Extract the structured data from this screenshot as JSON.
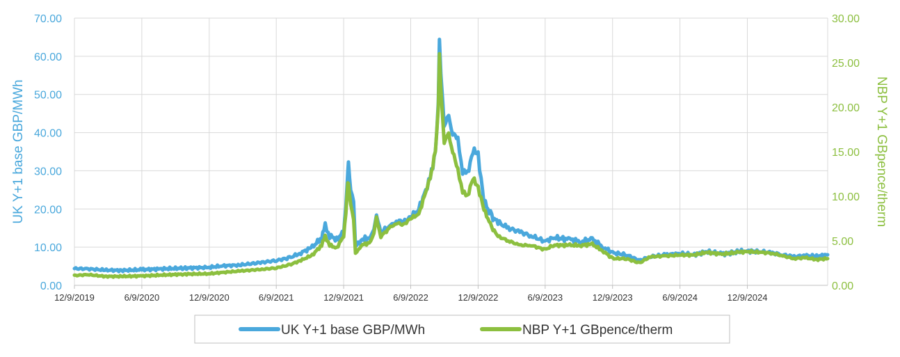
{
  "chart_data": {
    "type": "line",
    "title": "",
    "xlabel": "",
    "x_ticks": [
      "12/9/2019",
      "6/9/2020",
      "12/9/2020",
      "6/9/2021",
      "12/9/2021",
      "6/9/2022",
      "12/9/2022",
      "6/9/2023",
      "12/9/2023",
      "6/9/2024",
      "12/9/2024"
    ],
    "x_range": [
      "2019-12-09",
      "2025-07-15"
    ],
    "y_left": {
      "label": "UK Y+1 base GBP/MWh",
      "ylim": [
        0,
        70
      ],
      "ticks": [
        "0.00",
        "10.00",
        "20.00",
        "30.00",
        "40.00",
        "50.00",
        "60.00",
        "70.00"
      ]
    },
    "y_right": {
      "label": "NBP Y+1 GBpence/therm",
      "ylim": [
        0,
        30
      ],
      "ticks": [
        "0.00",
        "5.00",
        "10.00",
        "15.00",
        "20.00",
        "25.00",
        "30.00"
      ]
    },
    "grid": true,
    "legend_position": "bottom",
    "series": [
      {
        "name": "UK Y+1 base GBP/MWh",
        "axis": "left",
        "color": "#4aa8dc",
        "points": [
          [
            "2019-12-09",
            4.4
          ],
          [
            "2020-01-15",
            4.3
          ],
          [
            "2020-03-01",
            4.0
          ],
          [
            "2020-04-15",
            3.9
          ],
          [
            "2020-06-09",
            4.1
          ],
          [
            "2020-08-01",
            4.3
          ],
          [
            "2020-10-01",
            4.5
          ],
          [
            "2020-12-09",
            4.7
          ],
          [
            "2021-01-15",
            5.1
          ],
          [
            "2021-03-01",
            5.3
          ],
          [
            "2021-05-01",
            6.0
          ],
          [
            "2021-06-09",
            6.5
          ],
          [
            "2021-07-15",
            7.2
          ],
          [
            "2021-08-15",
            8.5
          ],
          [
            "2021-09-15",
            10.0
          ],
          [
            "2021-10-10",
            12.5
          ],
          [
            "2021-10-20",
            15.5
          ],
          [
            "2021-11-01",
            13.0
          ],
          [
            "2021-11-20",
            12.0
          ],
          [
            "2021-12-09",
            14.0
          ],
          [
            "2021-12-15",
            20.0
          ],
          [
            "2021-12-20",
            30.0
          ],
          [
            "2021-12-22",
            32.0
          ],
          [
            "2021-12-28",
            25.0
          ],
          [
            "2022-01-05",
            22.0
          ],
          [
            "2022-01-10",
            10.0
          ],
          [
            "2022-01-25",
            12.0
          ],
          [
            "2022-02-20",
            12.5
          ],
          [
            "2022-03-01",
            15.0
          ],
          [
            "2022-03-08",
            18.0
          ],
          [
            "2022-03-20",
            14.0
          ],
          [
            "2022-04-15",
            15.5
          ],
          [
            "2022-05-01",
            17.0
          ],
          [
            "2022-05-20",
            16.5
          ],
          [
            "2022-06-09",
            18.0
          ],
          [
            "2022-07-01",
            20.0
          ],
          [
            "2022-07-20",
            25.0
          ],
          [
            "2022-08-01",
            28.0
          ],
          [
            "2022-08-15",
            35.0
          ],
          [
            "2022-08-23",
            48.0
          ],
          [
            "2022-08-26",
            64.5
          ],
          [
            "2022-08-30",
            55.0
          ],
          [
            "2022-09-08",
            42.0
          ],
          [
            "2022-09-20",
            44.0
          ],
          [
            "2022-10-01",
            40.0
          ],
          [
            "2022-10-15",
            38.0
          ],
          [
            "2022-10-28",
            30.0
          ],
          [
            "2022-11-10",
            29.0
          ],
          [
            "2022-11-25",
            35.5
          ],
          [
            "2022-12-09",
            34.0
          ],
          [
            "2022-12-25",
            22.0
          ],
          [
            "2023-01-15",
            18.0
          ],
          [
            "2023-02-01",
            16.5
          ],
          [
            "2023-03-01",
            15.0
          ],
          [
            "2023-04-01",
            14.0
          ],
          [
            "2023-05-01",
            13.0
          ],
          [
            "2023-06-09",
            11.5
          ],
          [
            "2023-07-01",
            12.5
          ],
          [
            "2023-08-15",
            12.0
          ],
          [
            "2023-09-15",
            11.5
          ],
          [
            "2023-10-15",
            12.0
          ],
          [
            "2023-11-15",
            10.0
          ],
          [
            "2023-12-09",
            8.5
          ],
          [
            "2024-01-15",
            8.0
          ],
          [
            "2024-02-20",
            6.5
          ],
          [
            "2024-03-20",
            7.5
          ],
          [
            "2024-05-01",
            8.0
          ],
          [
            "2024-06-09",
            8.3
          ],
          [
            "2024-07-15",
            8.0
          ],
          [
            "2024-08-20",
            8.8
          ],
          [
            "2024-10-01",
            8.2
          ],
          [
            "2024-11-15",
            8.8
          ],
          [
            "2024-12-09",
            9.0
          ],
          [
            "2025-01-15",
            8.8
          ],
          [
            "2025-02-15",
            8.5
          ],
          [
            "2025-03-15",
            8.0
          ],
          [
            "2025-04-15",
            7.5
          ],
          [
            "2025-05-15",
            7.8
          ],
          [
            "2025-06-15",
            7.6
          ],
          [
            "2025-07-15",
            8.0
          ]
        ]
      },
      {
        "name": "NBP Y+1 GBpence/therm",
        "axis": "right",
        "color": "#8cbf3f",
        "points": [
          [
            "2019-12-09",
            1.1
          ],
          [
            "2020-01-15",
            1.2
          ],
          [
            "2020-03-01",
            1.0
          ],
          [
            "2020-04-15",
            1.0
          ],
          [
            "2020-06-09",
            1.05
          ],
          [
            "2020-08-01",
            1.15
          ],
          [
            "2020-10-01",
            1.25
          ],
          [
            "2020-12-09",
            1.3
          ],
          [
            "2021-01-15",
            1.45
          ],
          [
            "2021-03-01",
            1.6
          ],
          [
            "2021-05-01",
            1.8
          ],
          [
            "2021-06-09",
            1.95
          ],
          [
            "2021-07-15",
            2.3
          ],
          [
            "2021-08-15",
            2.8
          ],
          [
            "2021-09-15",
            3.4
          ],
          [
            "2021-10-10",
            4.5
          ],
          [
            "2021-10-20",
            5.5
          ],
          [
            "2021-11-01",
            4.5
          ],
          [
            "2021-11-20",
            4.2
          ],
          [
            "2021-12-09",
            5.5
          ],
          [
            "2021-12-15",
            8.0
          ],
          [
            "2021-12-20",
            11.5
          ],
          [
            "2021-12-22",
            11.5
          ],
          [
            "2021-12-28",
            9.0
          ],
          [
            "2022-01-05",
            7.5
          ],
          [
            "2022-01-10",
            3.5
          ],
          [
            "2022-01-25",
            4.5
          ],
          [
            "2022-02-20",
            4.8
          ],
          [
            "2022-03-01",
            6.0
          ],
          [
            "2022-03-08",
            7.5
          ],
          [
            "2022-03-20",
            5.5
          ],
          [
            "2022-04-15",
            6.5
          ],
          [
            "2022-05-01",
            7.0
          ],
          [
            "2022-05-20",
            6.8
          ],
          [
            "2022-06-09",
            7.5
          ],
          [
            "2022-07-01",
            8.0
          ],
          [
            "2022-07-20",
            10.5
          ],
          [
            "2022-08-01",
            12.0
          ],
          [
            "2022-08-15",
            15.0
          ],
          [
            "2022-08-23",
            20.0
          ],
          [
            "2022-08-26",
            26.0
          ],
          [
            "2022-08-30",
            22.0
          ],
          [
            "2022-09-08",
            16.0
          ],
          [
            "2022-09-20",
            17.0
          ],
          [
            "2022-10-01",
            15.0
          ],
          [
            "2022-10-15",
            13.0
          ],
          [
            "2022-10-28",
            10.5
          ],
          [
            "2022-11-10",
            10.0
          ],
          [
            "2022-11-25",
            12.0
          ],
          [
            "2022-12-09",
            11.0
          ],
          [
            "2022-12-25",
            8.5
          ],
          [
            "2023-01-15",
            6.5
          ],
          [
            "2023-02-01",
            5.5
          ],
          [
            "2023-03-01",
            5.0
          ],
          [
            "2023-04-01",
            4.5
          ],
          [
            "2023-05-01",
            4.5
          ],
          [
            "2023-06-09",
            4.0
          ],
          [
            "2023-07-01",
            4.5
          ],
          [
            "2023-08-15",
            4.5
          ],
          [
            "2023-09-15",
            4.5
          ],
          [
            "2023-10-15",
            4.6
          ],
          [
            "2023-11-15",
            3.8
          ],
          [
            "2023-12-09",
            3.0
          ],
          [
            "2024-01-15",
            3.0
          ],
          [
            "2024-02-20",
            2.5
          ],
          [
            "2024-03-20",
            3.2
          ],
          [
            "2024-05-01",
            3.3
          ],
          [
            "2024-06-09",
            3.4
          ],
          [
            "2024-07-15",
            3.4
          ],
          [
            "2024-08-20",
            3.7
          ],
          [
            "2024-10-01",
            3.5
          ],
          [
            "2024-11-15",
            3.7
          ],
          [
            "2024-12-09",
            3.8
          ],
          [
            "2025-01-15",
            3.7
          ],
          [
            "2025-02-15",
            3.6
          ],
          [
            "2025-03-15",
            3.3
          ],
          [
            "2025-04-15",
            3.0
          ],
          [
            "2025-05-15",
            3.1
          ],
          [
            "2025-06-15",
            2.9
          ],
          [
            "2025-07-15",
            3.0
          ]
        ]
      }
    ]
  }
}
